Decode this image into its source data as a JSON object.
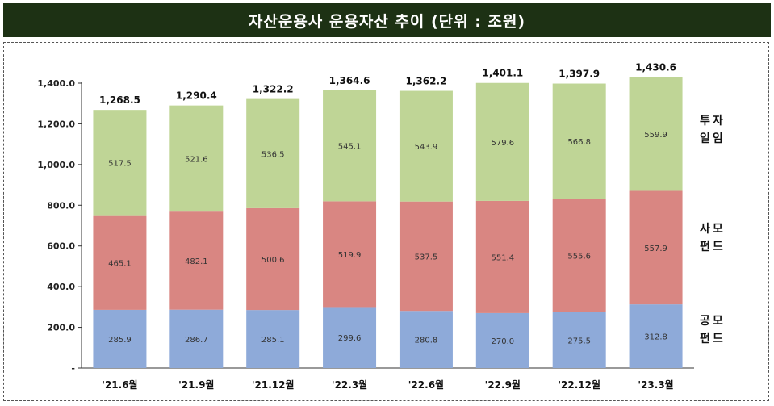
{
  "title": "자산운용사 운용자산 추이 (단위 : 조원)",
  "chart_data": {
    "type": "bar",
    "stacked": true,
    "title": "자산운용사 운용자산 추이 (단위 : 조원)",
    "xlabel": "",
    "ylabel": "",
    "ylim": [
      0,
      1400
    ],
    "ytick_step": 200,
    "ytick_labels": [
      "-",
      "200.0",
      "400.0",
      "600.0",
      "800.0",
      "1,000.0",
      "1,200.0",
      "1,400.0"
    ],
    "categories": [
      "'21.6월",
      "'21.9월",
      "'21.12월",
      "'22.3월",
      "'22.6월",
      "'22.9월",
      "'22.12월",
      "'23.3월"
    ],
    "series": [
      {
        "name": "공모펀드",
        "label_lines": [
          "공모",
          "펀드"
        ],
        "color": "#8eaad9",
        "values": [
          285.9,
          286.7,
          285.1,
          299.6,
          280.8,
          270.0,
          275.5,
          312.8
        ],
        "labels": [
          "285.9",
          "286.7",
          "285.1",
          "299.6",
          "280.8",
          "270.0",
          "275.5",
          "312.8"
        ]
      },
      {
        "name": "사모펀드",
        "label_lines": [
          "사모",
          "펀드"
        ],
        "color": "#d98682",
        "values": [
          465.1,
          482.1,
          500.6,
          519.9,
          537.5,
          551.4,
          555.6,
          557.9
        ],
        "labels": [
          "465.1",
          "482.1",
          "500.6",
          "519.9",
          "537.5",
          "551.4",
          "555.6",
          "557.9"
        ]
      },
      {
        "name": "투자일임",
        "label_lines": [
          "투자",
          "일임"
        ],
        "color": "#bfd596",
        "values": [
          517.5,
          521.6,
          536.5,
          545.1,
          543.9,
          579.6,
          566.8,
          559.9
        ],
        "labels": [
          "517.5",
          "521.6",
          "536.5",
          "545.1",
          "543.9",
          "579.6",
          "566.8",
          "559.9"
        ]
      }
    ],
    "totals": [
      1268.5,
      1290.4,
      1322.2,
      1364.6,
      1362.2,
      1401.1,
      1397.9,
      1430.6
    ],
    "total_labels": [
      "1,268.5",
      "1,290.4",
      "1,322.2",
      "1,364.6",
      "1,362.2",
      "1,401.1",
      "1,397.9",
      "1,430.6"
    ],
    "legend_position": "right"
  }
}
